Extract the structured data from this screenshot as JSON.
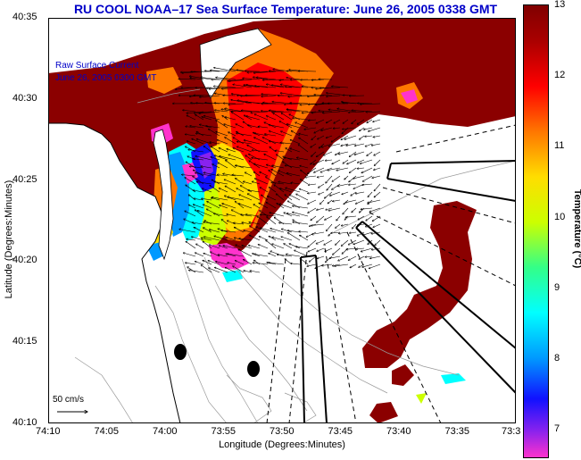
{
  "title": "RU COOL  NOAA–17  Sea Surface Temperature:  June 26, 2005 0338 GMT",
  "axes": {
    "xlabel": "Longitude (Degrees:Minutes)",
    "ylabel": "Latitude (Degrees:Minutes)",
    "xticks": [
      "74:10",
      "74:05",
      "74:00",
      "73:55",
      "73:50",
      "73:45",
      "73:40",
      "73:35",
      "73:3"
    ],
    "yticks": [
      "40:35",
      "40:30",
      "40:25",
      "40:20",
      "40:15",
      "40:10"
    ]
  },
  "legend": {
    "line1": "Raw Surface Current",
    "line2": "June 26, 2005 0300 GMT"
  },
  "scale": {
    "label": "50 cm/s"
  },
  "colorbar": {
    "title": "Temperature (°C)",
    "ticks": [
      "13",
      "12",
      "11",
      "10",
      "9",
      "8",
      "7"
    ],
    "range": [
      6.6,
      13
    ],
    "colors": [
      "#ff33cc",
      "#8822ee",
      "#1111ff",
      "#0099ff",
      "#00ffff",
      "#33ff88",
      "#ccff00",
      "#ffdd00",
      "#ff7700",
      "#ff0000",
      "#aa0000",
      "#800000"
    ]
  },
  "colors": {
    "title": "#0000c8",
    "land": "#ffffff",
    "warm_water": "#8b0000"
  }
}
